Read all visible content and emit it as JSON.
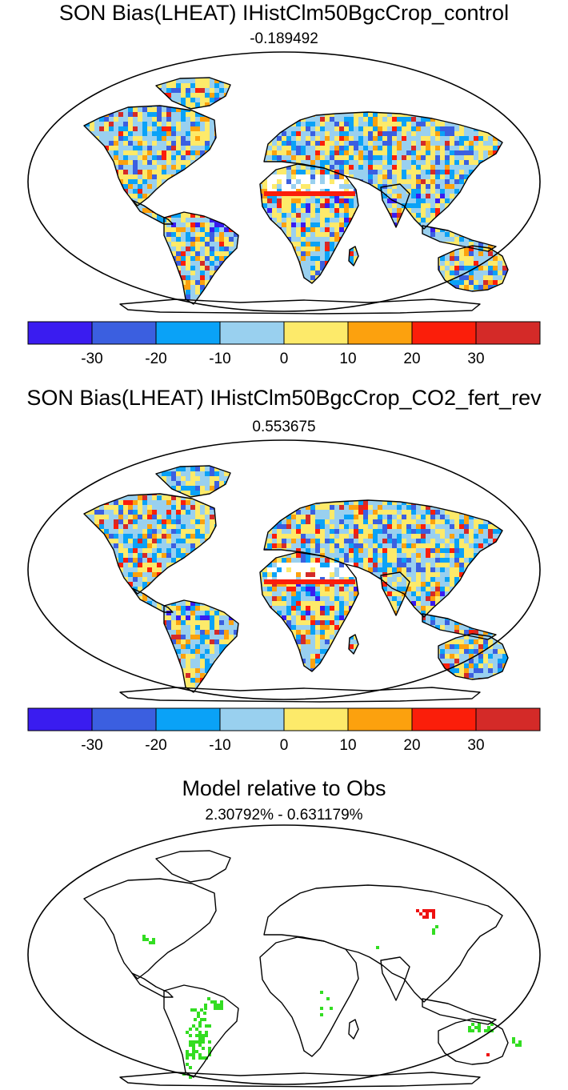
{
  "panels": [
    {
      "title": "SON Bias(LHEAT) IHistClm50BgcCrop_control",
      "subtitle": "-0.189492"
    },
    {
      "title": "SON Bias(LHEAT) IHistClm50BgcCrop_CO2_fert_rev",
      "subtitle": "0.553675"
    },
    {
      "title": "Model relative to Obs",
      "subtitle": "2.30792% - 0.631179%"
    }
  ],
  "colorbar": {
    "colors": [
      "#3a1cf0",
      "#3b5fe0",
      "#0aa2f7",
      "#99d0ef",
      "#fdea6a",
      "#fca10e",
      "#fb1e0a",
      "#d42a28"
    ],
    "tick_labels": [
      "-30",
      "-20",
      "-10",
      "0",
      "10",
      "20",
      "30"
    ]
  },
  "map_style": {
    "projection": "robinson",
    "coastline_color": "#000000",
    "ocean_color": "#ffffff",
    "relative_colors": [
      "#33dd22",
      "#ee1111"
    ]
  }
}
